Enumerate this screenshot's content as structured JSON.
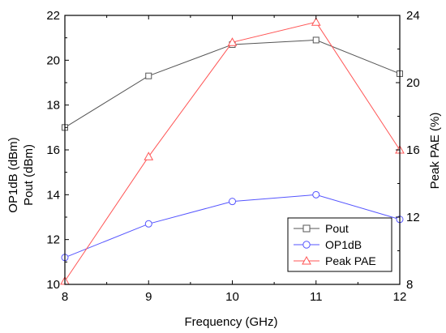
{
  "chart_data": {
    "type": "line",
    "x": [
      8,
      9,
      10,
      11,
      12
    ],
    "xlabel": "Frequency (GHz)",
    "xlim": [
      8,
      12
    ],
    "xticks": [
      "8",
      "9",
      "10",
      "11",
      "12"
    ],
    "ylabel_left_lines": [
      "OP1dB (dBm)",
      "Pout (dBm)"
    ],
    "ylim_left": [
      10,
      22
    ],
    "yticks_left": [
      "10",
      "12",
      "14",
      "16",
      "18",
      "20",
      "22"
    ],
    "ylabel_right": "Peak PAE (%)",
    "ylim_right": [
      8,
      24
    ],
    "yticks_right": [
      "8",
      "12",
      "16",
      "20",
      "24"
    ],
    "grid": false,
    "legend_position": "bottom-right",
    "series": [
      {
        "name": "Pout",
        "axis": "left",
        "marker": "square",
        "color": "#555555",
        "values": [
          17.0,
          19.3,
          20.7,
          20.9,
          19.4
        ]
      },
      {
        "name": "OP1dB",
        "axis": "left",
        "marker": "circle",
        "color": "#5555ff",
        "values": [
          11.2,
          12.7,
          13.7,
          14.0,
          12.9
        ]
      },
      {
        "name": "Peak PAE",
        "axis": "right",
        "marker": "triangle",
        "color": "#ff5555",
        "values": [
          8.2,
          15.6,
          22.4,
          23.6,
          16.0
        ]
      }
    ]
  }
}
